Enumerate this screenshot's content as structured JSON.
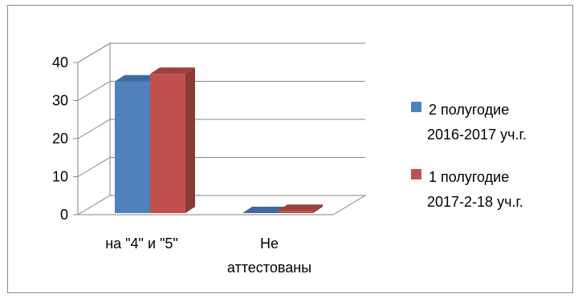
{
  "chart_data": {
    "type": "bar",
    "subtype": "3d-clustered-column",
    "title": "",
    "xlabel": "",
    "ylabel": "",
    "ylim": [
      0,
      40
    ],
    "yticks": [
      "0",
      "10",
      "20",
      "30",
      "40"
    ],
    "categories": [
      [
        "на \"4\" и \"5\""
      ],
      [
        "Не",
        "аттестованы"
      ]
    ],
    "series": [
      {
        "name": [
          "2 полугодие",
          "2016-2017 уч.г."
        ],
        "color": "#4F81BD",
        "values": [
          35,
          0
        ]
      },
      {
        "name": [
          "1 полугодие",
          "2017-2-18 уч.г."
        ],
        "color": "#C0504D",
        "values": [
          37,
          1
        ]
      }
    ],
    "grid": true,
    "legend": "right"
  }
}
